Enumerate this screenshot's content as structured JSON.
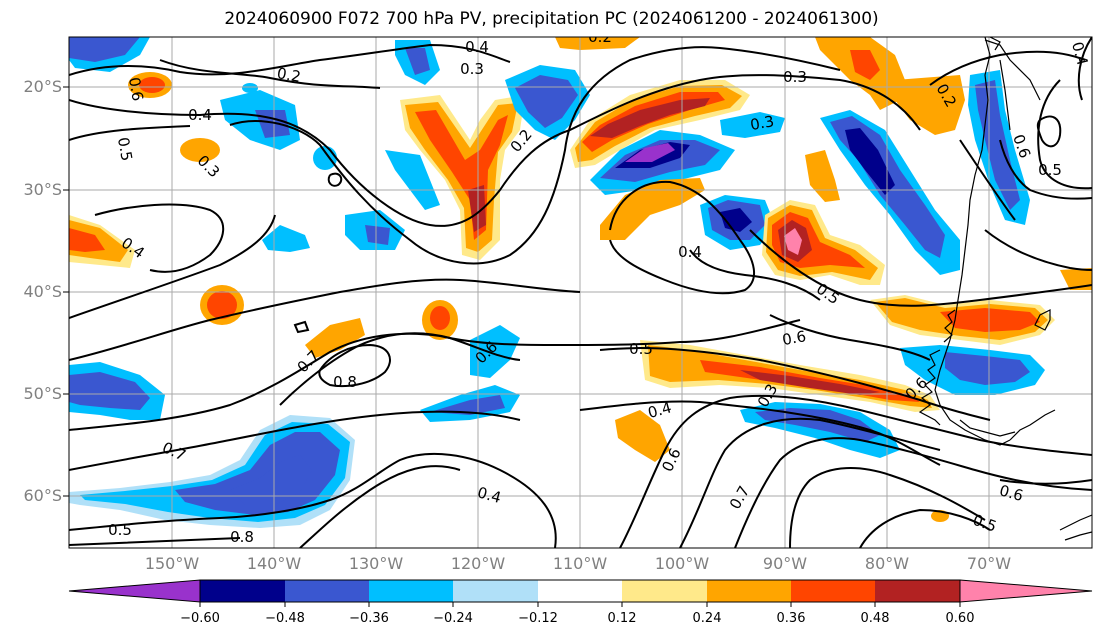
{
  "title": "2024060900 F072 700 hPa PV, precipitation PC (2024061200 - 2024061300)",
  "lat_labels": [
    "20°S",
    "30°S",
    "40°S",
    "50°S",
    "60°S"
  ],
  "lon_labels": [
    "150°W",
    "140°W",
    "130°W",
    "120°W",
    "110°W",
    "100°W",
    "90°W",
    "80°W",
    "70°W"
  ],
  "colorbar": {
    "colors": [
      "#9932cc",
      "#00008b",
      "#3a57d0",
      "#00bfff",
      "#b0e0f8",
      "#ffffff",
      "#ffe98a",
      "#ffa500",
      "#ff4500",
      "#b22222",
      "#ff82ab"
    ],
    "tick_labels": [
      "−0.60",
      "−0.48",
      "−0.36",
      "−0.24",
      "−0.12",
      "0.12",
      "0.24",
      "0.36",
      "0.48",
      "0.60"
    ]
  },
  "contour_labels": [
    "0.2",
    "0.4",
    "0.3",
    "0.2",
    "0.4",
    "0.5",
    "0.3",
    "0.4",
    "0.2",
    "0.3",
    "0.4",
    "0.3",
    "0.2",
    "0.5",
    "0.6",
    "0.5",
    "0.7",
    "0.8",
    "0.6",
    "0.5",
    "0.6",
    "0.4",
    "0.3",
    "0.6",
    "0.7",
    "0.4",
    "0.6",
    "0.7",
    "0.8",
    "0.5",
    "0.6",
    "0.5",
    "0.6",
    "0.4"
  ],
  "icons": [
    "coastline-south-america"
  ]
}
